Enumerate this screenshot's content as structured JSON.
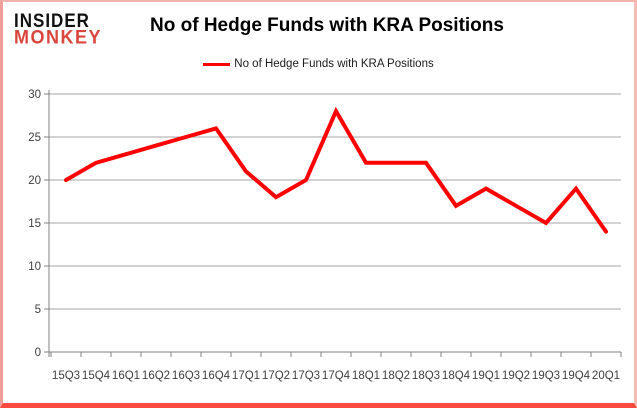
{
  "brand": {
    "line1": "INSIDER",
    "line2": "MONKEY",
    "line1_color": "#111111",
    "line2_color": "#d8463c"
  },
  "header": {
    "title": "No of Hedge Funds with KRA Positions"
  },
  "legend": {
    "label": "No of Hedge Funds with KRA Positions",
    "swatch_color": "#ff0000"
  },
  "chart_data": {
    "type": "line",
    "title": "No of Hedge Funds with KRA Positions",
    "categories": [
      "15Q3",
      "15Q4",
      "16Q1",
      "16Q2",
      "16Q3",
      "16Q4",
      "17Q1",
      "17Q2",
      "17Q3",
      "17Q4",
      "18Q1",
      "18Q2",
      "18Q3",
      "18Q4",
      "19Q1",
      "19Q2",
      "19Q3",
      "19Q4",
      "20Q1"
    ],
    "series": [
      {
        "name": "No of Hedge Funds with KRA Positions",
        "color": "#ff0000",
        "values": [
          20,
          22,
          23,
          24,
          25,
          26,
          21,
          18,
          20,
          28,
          22,
          22,
          22,
          17,
          19,
          17,
          15,
          19,
          14
        ]
      }
    ],
    "xlabel": "",
    "ylabel": "",
    "ylim": [
      0,
      30
    ],
    "ytick_step": 5,
    "grid": true,
    "legend_position": "top",
    "colors": {
      "grid": "#a6a6a6",
      "axis": "#808080",
      "tick_label": "#404040",
      "background": "#ffffff"
    }
  }
}
